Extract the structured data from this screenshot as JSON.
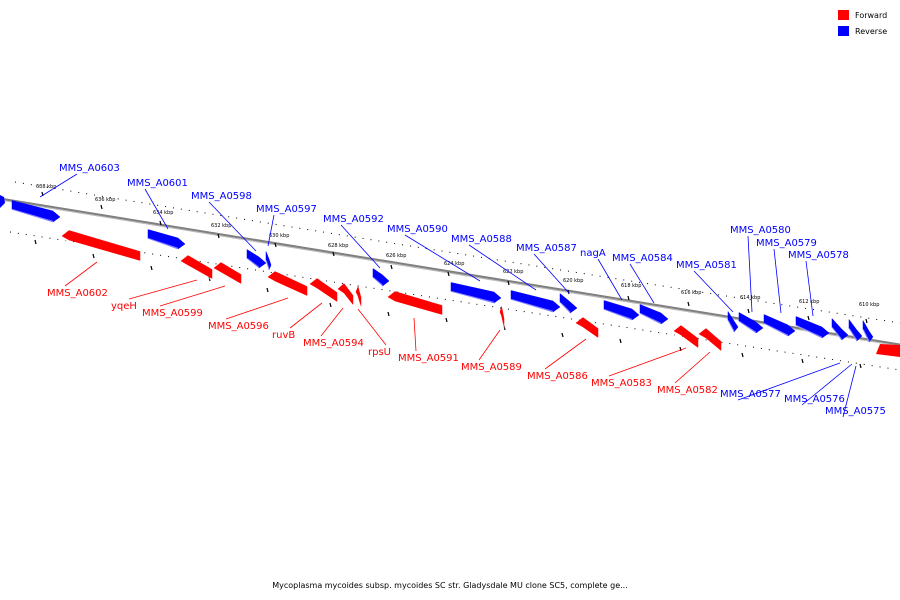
{
  "caption": "Mycoplasma mycoides subsp. mycoides SC str. Gladysdale MU clone SC5, complete ge...",
  "legend": [
    {
      "label": "Forward",
      "color": "#ff0000"
    },
    {
      "label": "Reverse",
      "color": "#0000ff"
    }
  ],
  "colors": {
    "forward": "#ff0000",
    "reverse": "#0000ff",
    "backbone": "#808080"
  },
  "ticks": [
    "638 kbp",
    "636 kbp",
    "634 kbp",
    "632 kbp",
    "630 kbp",
    "628 kbp",
    "626 kbp",
    "624 kbp",
    "622 kbp",
    "620 kbp",
    "618 kbp",
    "616 kbp",
    "614 kbp",
    "612 kbp",
    "610 kbp"
  ],
  "genes": [
    {
      "name": "MMS_A0603",
      "strand": "reverse"
    },
    {
      "name": "MMS_A0601",
      "strand": "reverse"
    },
    {
      "name": "MMS_A0598",
      "strand": "reverse"
    },
    {
      "name": "MMS_A0597",
      "strand": "reverse"
    },
    {
      "name": "MMS_A0592",
      "strand": "reverse"
    },
    {
      "name": "MMS_A0590",
      "strand": "reverse"
    },
    {
      "name": "MMS_A0588",
      "strand": "reverse"
    },
    {
      "name": "MMS_A0587",
      "strand": "reverse"
    },
    {
      "name": "nagA",
      "strand": "reverse"
    },
    {
      "name": "MMS_A0584",
      "strand": "reverse"
    },
    {
      "name": "MMS_A0581",
      "strand": "reverse"
    },
    {
      "name": "MMS_A0580",
      "strand": "reverse"
    },
    {
      "name": "MMS_A0579",
      "strand": "reverse"
    },
    {
      "name": "MMS_A0578",
      "strand": "reverse"
    },
    {
      "name": "MMS_A0577",
      "strand": "reverse"
    },
    {
      "name": "MMS_A0576",
      "strand": "reverse"
    },
    {
      "name": "MMS_A0575",
      "strand": "reverse"
    },
    {
      "name": "MMS_A0602",
      "strand": "forward"
    },
    {
      "name": "yqeH",
      "strand": "forward"
    },
    {
      "name": "MMS_A0599",
      "strand": "forward"
    },
    {
      "name": "MMS_A0596",
      "strand": "forward"
    },
    {
      "name": "ruvB",
      "strand": "forward"
    },
    {
      "name": "MMS_A0594",
      "strand": "forward"
    },
    {
      "name": "rpsU",
      "strand": "forward"
    },
    {
      "name": "MMS_A0591",
      "strand": "forward"
    },
    {
      "name": "MMS_A0589",
      "strand": "forward"
    },
    {
      "name": "MMS_A0586",
      "strand": "forward"
    },
    {
      "name": "MMS_A0583",
      "strand": "forward"
    },
    {
      "name": "MMS_A0582",
      "strand": "forward"
    }
  ]
}
